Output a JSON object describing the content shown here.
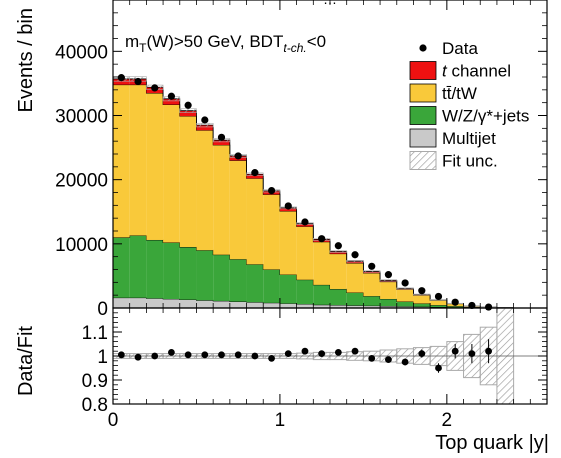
{
  "chart_data": {
    "type": "histogram-with-ratio",
    "header_text": "…",
    "annotation": {
      "main": "m",
      "sub_T": "T",
      "mid": "(W)>50 GeV, BDT",
      "sub_tch": "t-ch.",
      "tail": "<0"
    },
    "xlabel": "Top quark |y|",
    "ylabel_main": "Events / bin",
    "ylabel_ratio": "Data/Fit",
    "xlim": [
      0,
      2.6
    ],
    "x_ticks": [
      "0",
      "1",
      "2"
    ],
    "x_tick_values": [
      0,
      1,
      2
    ],
    "ylim_main": [
      0,
      48000
    ],
    "y_ticks_main": [
      "0",
      "10000",
      "20000",
      "30000",
      "40000"
    ],
    "y_tick_values_main": [
      0,
      10000,
      20000,
      30000,
      40000
    ],
    "ylim_ratio": [
      0.8,
      1.2
    ],
    "y_ticks_ratio": [
      "0.8",
      "0.9",
      "1",
      "1.1"
    ],
    "y_tick_values_ratio": [
      0.8,
      0.9,
      1.0,
      1.1
    ],
    "bin_edges": [
      0.0,
      0.1,
      0.2,
      0.3,
      0.4,
      0.5,
      0.6,
      0.7,
      0.8,
      0.9,
      1.0,
      1.1,
      1.2,
      1.3,
      1.4,
      1.5,
      1.6,
      1.7,
      1.8,
      1.9,
      2.0,
      2.1,
      2.2,
      2.3,
      2.4
    ],
    "legend": [
      {
        "label": "Data",
        "type": "marker"
      },
      {
        "label_italic": "t",
        "label": " channel",
        "type": "box",
        "color": "#ee1111"
      },
      {
        "label": "tt̄/tW",
        "type": "box",
        "color": "#f9c93a"
      },
      {
        "label": "W/Z/γ*+jets",
        "type": "box",
        "color": "#3aa63a"
      },
      {
        "label": "Multijet",
        "type": "box",
        "color": "#c9c9c9"
      },
      {
        "label": "Fit unc.",
        "type": "hatch"
      }
    ],
    "series": [
      {
        "name": "Multijet",
        "color": "#c9c9c9",
        "values": [
          1600,
          1600,
          1500,
          1400,
          1300,
          1200,
          1100,
          1000,
          900,
          800,
          700,
          600,
          500,
          450,
          400,
          350,
          300,
          250,
          200,
          150,
          100,
          50,
          30,
          10
        ]
      },
      {
        "name": "W/Z/γ*+jets",
        "color": "#3aa63a",
        "values": [
          9400,
          9700,
          9100,
          8800,
          8200,
          7800,
          7200,
          6600,
          5900,
          5200,
          4500,
          3800,
          3100,
          2500,
          2000,
          1500,
          1100,
          750,
          500,
          300,
          180,
          90,
          40,
          15
        ]
      },
      {
        "name": "tt̄/tW",
        "color": "#f9c93a",
        "values": [
          23800,
          23500,
          22900,
          21500,
          20400,
          18700,
          17100,
          15400,
          13400,
          11700,
          9900,
          8300,
          6700,
          5500,
          4600,
          3600,
          2700,
          1900,
          1300,
          750,
          380,
          140,
          50,
          15
        ]
      },
      {
        "name": "t channel",
        "color": "#ee1111",
        "values": [
          900,
          900,
          900,
          900,
          850,
          800,
          750,
          700,
          650,
          550,
          500,
          450,
          400,
          350,
          300,
          250,
          200,
          150,
          100,
          70,
          40,
          20,
          10,
          5
        ]
      }
    ],
    "data_points": {
      "x": [
        0.05,
        0.15,
        0.25,
        0.35,
        0.45,
        0.55,
        0.65,
        0.75,
        0.85,
        0.95,
        1.05,
        1.15,
        1.25,
        1.35,
        1.45,
        1.55,
        1.65,
        1.75,
        1.85,
        1.95,
        2.05,
        2.15,
        2.25
      ],
      "y": [
        35900,
        35300,
        34300,
        33000,
        31600,
        29300,
        26600,
        23700,
        21100,
        18300,
        15900,
        13400,
        10800,
        9700,
        8300,
        6500,
        5200,
        3900,
        2700,
        1800,
        900,
        400,
        150
      ]
    },
    "ratio_points": {
      "x": [
        0.05,
        0.15,
        0.25,
        0.35,
        0.45,
        0.55,
        0.65,
        0.75,
        0.85,
        0.95,
        1.05,
        1.15,
        1.25,
        1.35,
        1.45,
        1.55,
        1.65,
        1.75,
        1.85,
        1.95,
        2.05,
        2.15,
        2.25
      ],
      "y": [
        1.005,
        0.995,
        1.0,
        1.015,
        1.005,
        1.005,
        1.005,
        1.005,
        1.0,
        0.99,
        1.01,
        1.02,
        1.01,
        1.015,
        1.02,
        0.99,
        0.985,
        0.975,
        1.01,
        0.95,
        1.02,
        1.01,
        1.02
      ],
      "err": [
        0.004,
        0.004,
        0.004,
        0.004,
        0.004,
        0.004,
        0.005,
        0.005,
        0.005,
        0.006,
        0.006,
        0.007,
        0.008,
        0.009,
        0.009,
        0.01,
        0.012,
        0.014,
        0.017,
        0.02,
        0.03,
        0.04,
        0.05
      ]
    },
    "ratio_unc": [
      0.01,
      0.01,
      0.01,
      0.01,
      0.01,
      0.01,
      0.01,
      0.01,
      0.01,
      0.01,
      0.01,
      0.012,
      0.015,
      0.015,
      0.018,
      0.02,
      0.025,
      0.03,
      0.035,
      0.04,
      0.06,
      0.09,
      0.12,
      0.2
    ]
  }
}
